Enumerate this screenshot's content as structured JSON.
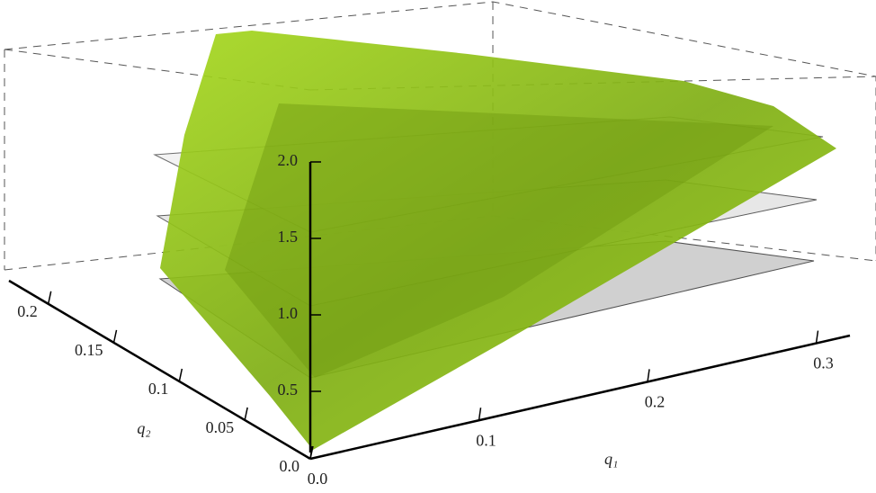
{
  "chart_data": {
    "type": "surface3d",
    "x_label": "q₁",
    "y_label": "q₂",
    "xlim": [
      0,
      0.32
    ],
    "xticks": [
      {
        "value": 0,
        "label": "0.0"
      },
      0.1,
      0.2,
      0.3
    ],
    "ylim": [
      0,
      0.23
    ],
    "yticks": [
      {
        "value": 0,
        "label": "0.0"
      },
      0.05,
      0.1,
      0.15,
      0.2
    ],
    "zlim": [
      0.1,
      2.0
    ],
    "zticks": [
      0.5,
      {
        "value": 1,
        "label": "1.0"
      },
      1.5,
      {
        "value": 2,
        "label": "2.0"
      }
    ],
    "color": "#8cc21a"
  }
}
